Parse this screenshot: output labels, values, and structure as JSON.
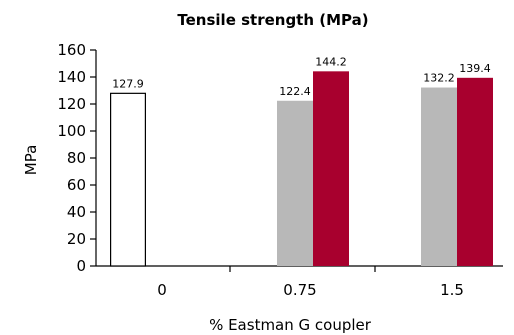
{
  "chart_data": {
    "type": "bar",
    "title": "Tensile strength (MPa)",
    "xlabel": "% Eastman G coupler",
    "ylabel": "MPa",
    "categories": [
      "0",
      "0.75",
      "1.5"
    ],
    "ylim": [
      0,
      160
    ],
    "yticks": [
      0,
      20,
      40,
      60,
      80,
      100,
      120,
      140,
      160
    ],
    "grid": false,
    "legend": "none",
    "series": [
      {
        "color": "#ffffff",
        "stroke": "#000000",
        "values": [
          127.9,
          null,
          null
        ]
      },
      {
        "color": "#b8b8b8",
        "stroke": "none",
        "values": [
          null,
          122.4,
          132.2
        ]
      },
      {
        "color": "#a8002e",
        "stroke": "none",
        "values": [
          null,
          144.2,
          139.4
        ]
      }
    ],
    "data_labels": [
      "127.9",
      "122.4",
      "144.2",
      "132.2",
      "139.4"
    ]
  }
}
